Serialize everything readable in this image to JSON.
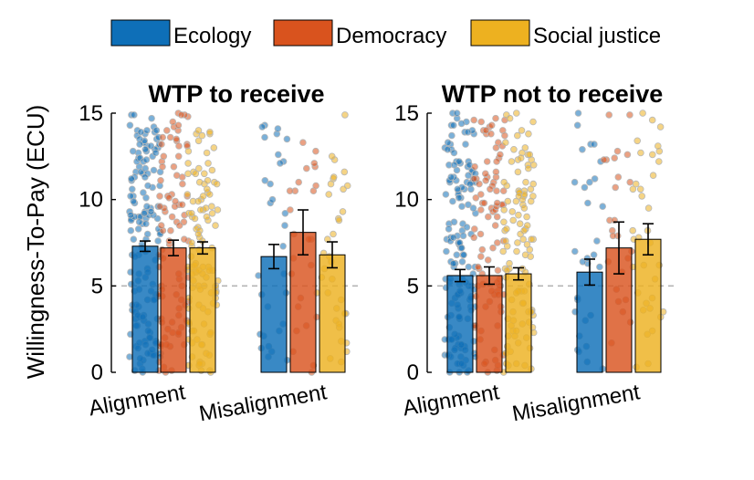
{
  "legend": [
    {
      "name": "Ecology",
      "color": "#0E6FB8"
    },
    {
      "name": "Democracy",
      "color": "#D9531E"
    },
    {
      "name": "Social justice",
      "color": "#EDB120"
    }
  ],
  "ylabel": "Willingness-To-Pay (ECU)",
  "chart_data": [
    {
      "type": "bar",
      "title": "WTP to receive",
      "categories": [
        "Alignment",
        "Misalignment"
      ],
      "ylim": [
        0,
        15
      ],
      "yticks": [
        "0",
        "5",
        "10",
        "15"
      ],
      "reference_line": 5,
      "series": [
        {
          "name": "Ecology",
          "values": [
            7.3,
            6.7
          ],
          "err": [
            0.3,
            0.7
          ]
        },
        {
          "name": "Democracy",
          "values": [
            7.2,
            8.1
          ],
          "err": [
            0.45,
            1.3
          ]
        },
        {
          "name": "Social justice",
          "values": [
            7.2,
            6.8
          ],
          "err": [
            0.35,
            0.75
          ]
        }
      ]
    },
    {
      "type": "bar",
      "title": "WTP not to receive",
      "categories": [
        "Alignment",
        "Misalignment"
      ],
      "ylim": [
        0,
        15
      ],
      "yticks": [
        "0",
        "5",
        "10",
        "15"
      ],
      "reference_line": 5,
      "series": [
        {
          "name": "Ecology",
          "values": [
            5.6,
            5.8
          ],
          "err": [
            0.35,
            0.75
          ]
        },
        {
          "name": "Democracy",
          "values": [
            5.6,
            7.2
          ],
          "err": [
            0.5,
            1.5
          ]
        },
        {
          "name": "Social justice",
          "values": [
            5.7,
            7.7
          ],
          "err": [
            0.35,
            0.9
          ]
        }
      ]
    }
  ]
}
